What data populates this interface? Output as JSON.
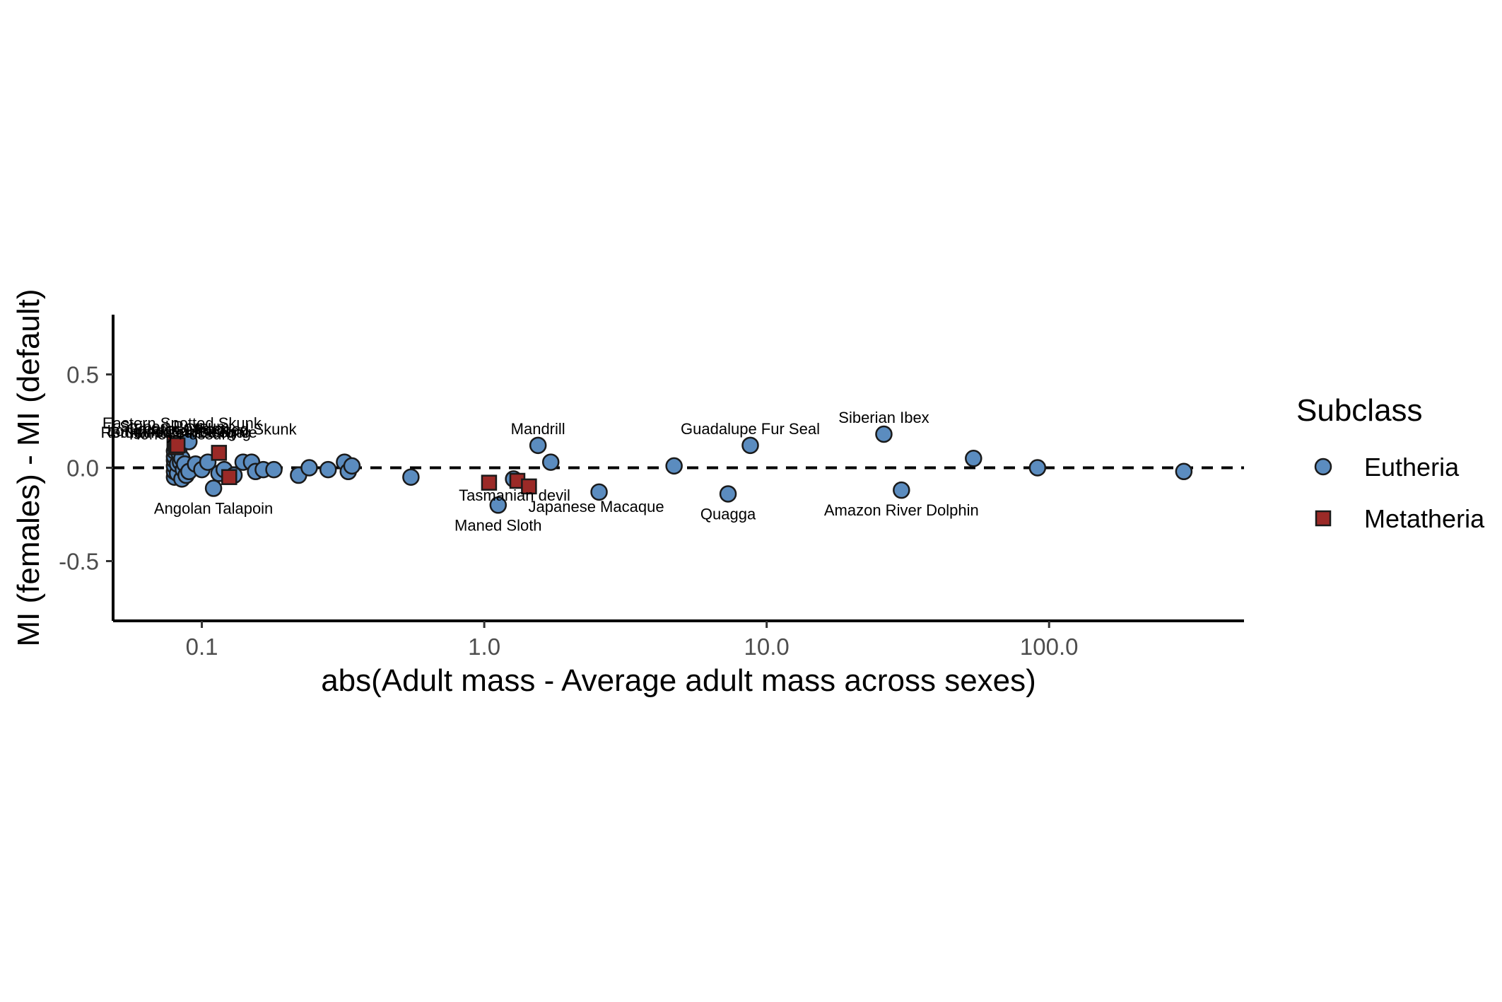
{
  "chart_data": {
    "type": "scatter",
    "xlabel": "abs(Adult mass - Average adult mass across sexes)",
    "ylabel": "MI (females) - MI (default)",
    "x_scale": "log10",
    "xlim": [
      0.0485,
      490
    ],
    "ylim": [
      -0.82,
      0.82
    ],
    "x_ticks": [
      0.1,
      1.0,
      10.0,
      100.0
    ],
    "x_tick_labels": [
      "0.1",
      "1.0",
      "10.0",
      "100.0"
    ],
    "y_ticks": [
      0.5,
      0.0,
      -0.5
    ],
    "y_tick_labels": [
      "0.5",
      "0.0",
      "-0.5"
    ],
    "reference_line": {
      "y": 0,
      "style": "dashed",
      "color": "#000000"
    },
    "grid": false,
    "legend": {
      "title": "Subclass",
      "placement": "right",
      "entries": [
        {
          "name": "Eutheria",
          "shape": "circle",
          "color": "#5b8cbf"
        },
        {
          "name": "Metatheria",
          "shape": "square",
          "color": "#9b2a27"
        }
      ]
    },
    "series": [
      {
        "name": "Eutheria",
        "shape": "circle",
        "color": "#5b8cbf",
        "points": [
          {
            "x": 0.08,
            "y": -0.05
          },
          {
            "x": 0.08,
            "y": -0.02
          },
          {
            "x": 0.08,
            "y": 0.01
          },
          {
            "x": 0.08,
            "y": 0.04
          },
          {
            "x": 0.08,
            "y": 0.06
          },
          {
            "x": 0.08,
            "y": 0.09
          },
          {
            "x": 0.082,
            "y": -0.03
          },
          {
            "x": 0.082,
            "y": 0.02
          },
          {
            "x": 0.083,
            "y": 0.08
          },
          {
            "x": 0.084,
            "y": 0.03
          },
          {
            "x": 0.085,
            "y": -0.06
          },
          {
            "x": 0.085,
            "y": 0.05
          },
          {
            "x": 0.086,
            "y": -0.01
          },
          {
            "x": 0.087,
            "y": 0.02
          },
          {
            "x": 0.088,
            "y": -0.04
          },
          {
            "x": 0.09,
            "y": -0.02
          },
          {
            "x": 0.09,
            "y": 0.14
          },
          {
            "x": 0.095,
            "y": 0.02
          },
          {
            "x": 0.1,
            "y": -0.01
          },
          {
            "x": 0.105,
            "y": 0.03
          },
          {
            "x": 0.11,
            "y": -0.11
          },
          {
            "x": 0.115,
            "y": -0.03
          },
          {
            "x": 0.12,
            "y": -0.01
          },
          {
            "x": 0.13,
            "y": -0.04
          },
          {
            "x": 0.14,
            "y": 0.03
          },
          {
            "x": 0.15,
            "y": 0.03
          },
          {
            "x": 0.155,
            "y": -0.02
          },
          {
            "x": 0.165,
            "y": -0.01
          },
          {
            "x": 0.18,
            "y": -0.01
          },
          {
            "x": 0.22,
            "y": -0.04
          },
          {
            "x": 0.24,
            "y": 0.0
          },
          {
            "x": 0.28,
            "y": -0.01
          },
          {
            "x": 0.32,
            "y": 0.03
          },
          {
            "x": 0.33,
            "y": -0.02
          },
          {
            "x": 0.34,
            "y": 0.01
          },
          {
            "x": 0.55,
            "y": -0.05
          },
          {
            "x": 1.12,
            "y": -0.2
          },
          {
            "x": 1.27,
            "y": -0.06
          },
          {
            "x": 1.55,
            "y": 0.12
          },
          {
            "x": 1.72,
            "y": 0.03
          },
          {
            "x": 2.55,
            "y": -0.13
          },
          {
            "x": 4.7,
            "y": 0.01
          },
          {
            "x": 7.3,
            "y": -0.14
          },
          {
            "x": 8.75,
            "y": 0.12
          },
          {
            "x": 26,
            "y": 0.18
          },
          {
            "x": 30,
            "y": -0.12
          },
          {
            "x": 54,
            "y": 0.05
          },
          {
            "x": 91,
            "y": 0.0
          },
          {
            "x": 300,
            "y": -0.02
          }
        ]
      },
      {
        "name": "Metatheria",
        "shape": "square",
        "color": "#9b2a27",
        "points": [
          {
            "x": 0.08,
            "y": 0.13
          },
          {
            "x": 0.081,
            "y": 0.11
          },
          {
            "x": 0.082,
            "y": 0.12
          },
          {
            "x": 0.115,
            "y": 0.08
          },
          {
            "x": 0.125,
            "y": -0.05
          },
          {
            "x": 1.04,
            "y": -0.08
          },
          {
            "x": 1.31,
            "y": -0.07
          },
          {
            "x": 1.44,
            "y": -0.1
          }
        ]
      }
    ],
    "annotations": [
      {
        "text": "Siberian Ibex",
        "x": 26,
        "y": 0.18,
        "placement": "above"
      },
      {
        "text": "Guadalupe Fur Seal",
        "x": 8.75,
        "y": 0.12,
        "placement": "above"
      },
      {
        "text": "Mandrill",
        "x": 1.55,
        "y": 0.12,
        "placement": "above"
      },
      {
        "text": "Amazon River Dolphin",
        "x": 30,
        "y": -0.12,
        "placement": "below"
      },
      {
        "text": "Quagga",
        "x": 7.3,
        "y": -0.14,
        "placement": "below"
      },
      {
        "text": "Japanese Macaque",
        "x": 2.55,
        "y": -0.13,
        "placement": "below-left"
      },
      {
        "text": "Tasmanian devil",
        "x": 1.31,
        "y": -0.07,
        "placement": "below-left"
      },
      {
        "text": "Maned Sloth",
        "x": 1.12,
        "y": -0.2,
        "placement": "below"
      },
      {
        "text": "Angolan Talapoin",
        "x": 0.11,
        "y": -0.11,
        "placement": "below"
      },
      {
        "text": "Hooded Skunk",
        "x": 0.09,
        "y": 0.14,
        "placement": "above-right"
      },
      {
        "text": "Eastern Spotted Skunk",
        "x": 0.085,
        "y": 0.15,
        "placement": "above"
      },
      {
        "text": "Striped Possum",
        "x": 0.08,
        "y": 0.13,
        "placement": "above"
      },
      {
        "text": "Greater Glider",
        "x": 0.081,
        "y": 0.12,
        "placement": "above"
      },
      {
        "text": "Long-nosed Potoroo",
        "x": 0.082,
        "y": 0.11,
        "placement": "above"
      },
      {
        "text": "Red-tailed Phascogale",
        "x": 0.083,
        "y": 0.1,
        "placement": "above"
      },
      {
        "text": "Brush-tailed Bettong",
        "x": 0.084,
        "y": 0.1,
        "placement": "above"
      },
      {
        "text": "Honey Possum",
        "x": 0.085,
        "y": 0.09,
        "placement": "above"
      }
    ]
  }
}
